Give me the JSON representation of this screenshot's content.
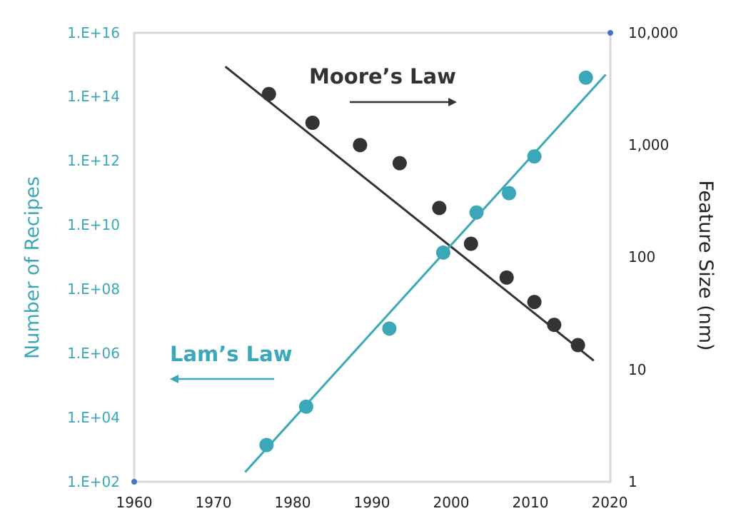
{
  "chart_data": {
    "type": "scatter",
    "x_range": [
      1960,
      2020
    ],
    "x_ticks": [
      "1960",
      "1970",
      "1980",
      "1990",
      "2000",
      "2010",
      "2020"
    ],
    "y_left": {
      "label": "Number of Recipes",
      "scale": "log",
      "range": [
        100,
        1e+16
      ],
      "ticks": [
        "1.E+16",
        "1.E+14",
        "1.E+12",
        "1.E+10",
        "1.E+08",
        "1.E+06",
        "1.E+04",
        "1.E+02"
      ],
      "color": "#3aa8b8"
    },
    "y_right": {
      "label": "Feature Size (nm)",
      "scale": "log",
      "range": [
        1,
        10000
      ],
      "ticks": [
        "10,000",
        "1,000",
        "100",
        "10",
        "1"
      ],
      "color": "#222222"
    },
    "series": [
      {
        "name": "Moore’s Law",
        "axis": "right",
        "color": "#333333",
        "points": [
          {
            "x": 1977,
            "y": 2850
          },
          {
            "x": 1982.5,
            "y": 1580
          },
          {
            "x": 1988.5,
            "y": 1000
          },
          {
            "x": 1993.5,
            "y": 690
          },
          {
            "x": 1998.5,
            "y": 275
          },
          {
            "x": 2002.5,
            "y": 132
          },
          {
            "x": 2007,
            "y": 66
          },
          {
            "x": 2010.5,
            "y": 40
          },
          {
            "x": 2013,
            "y": 25
          },
          {
            "x": 2016,
            "y": 16.5
          }
        ],
        "trend": [
          {
            "x": 1971.5,
            "y": 5000
          },
          {
            "x": 2018,
            "y": 12
          }
        ]
      },
      {
        "name": "Lam’s Law",
        "axis": "left",
        "color": "#3aa8b8",
        "points": [
          {
            "x": 1976.7,
            "y": 1400.0
          },
          {
            "x": 1981.7,
            "y": 22000.0
          },
          {
            "x": 1992.2,
            "y": 6000000.0
          },
          {
            "x": 1999,
            "y": 1400000000.0
          },
          {
            "x": 2003.2,
            "y": 25000000000.0
          },
          {
            "x": 2007.3,
            "y": 100000000000.0
          },
          {
            "x": 2010.5,
            "y": 1400000000000.0
          },
          {
            "x": 2017,
            "y": 400000000000000.0
          }
        ],
        "trend": [
          {
            "x": 1974,
            "y": 200
          },
          {
            "x": 2019.5,
            "y": 500000000000000.0
          }
        ]
      }
    ],
    "annotations": [
      {
        "text": "Moore’s Law",
        "arrow": "right"
      },
      {
        "text": "Lam’s Law",
        "arrow": "left"
      }
    ]
  }
}
